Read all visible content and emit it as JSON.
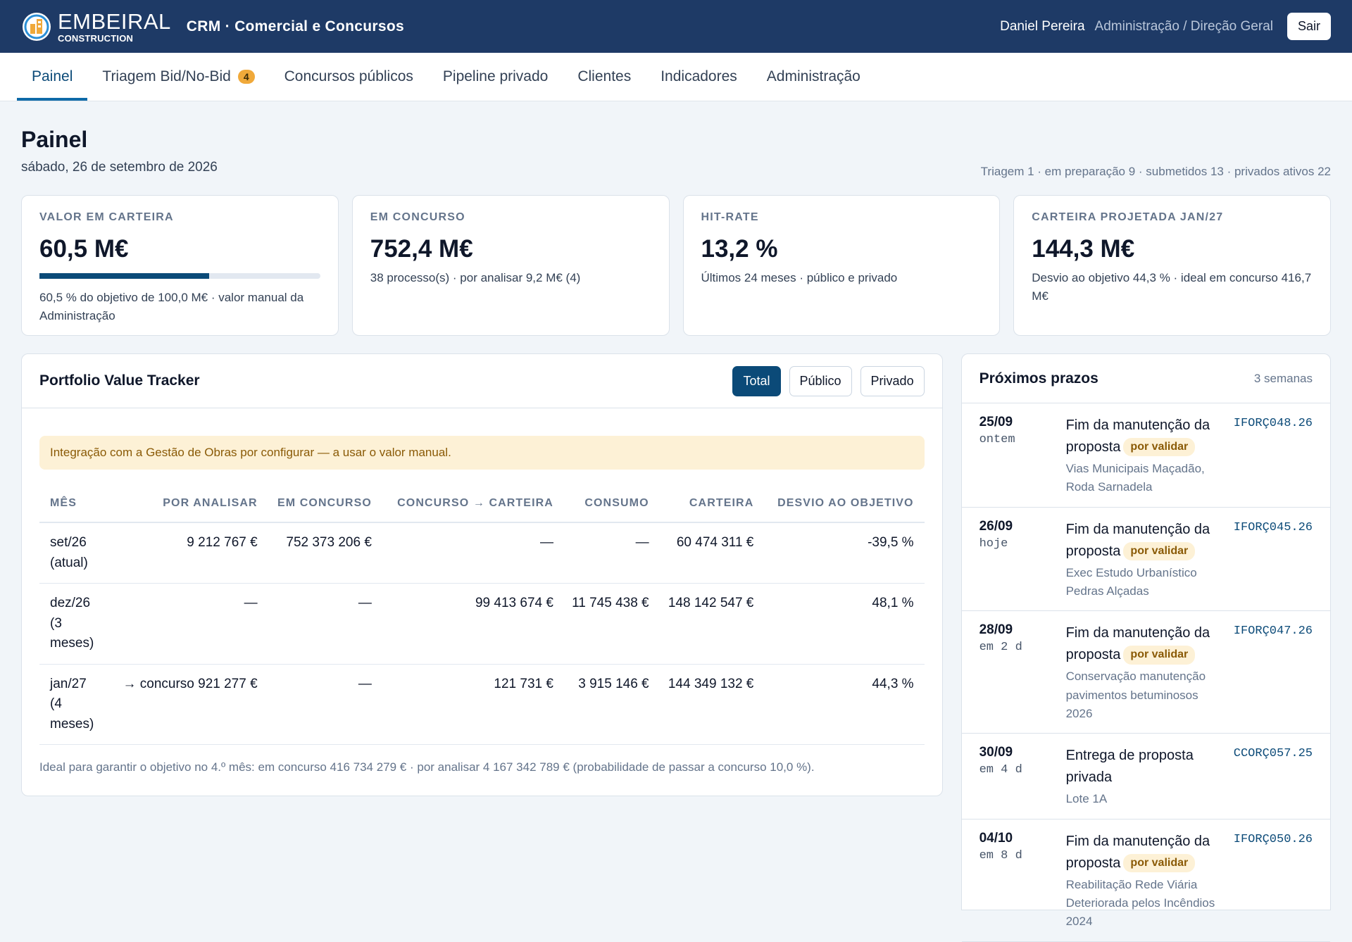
{
  "brand": {
    "name": "EMBEIRAL",
    "sub": "CONSTRUCTION",
    "app_title": "CRM · Comercial e Concursos",
    "colors": {
      "header_bg": "#1e3a66",
      "accent": "#0b4a78",
      "warning_bg": "#fdf1d6",
      "badge": "#f0a93a"
    }
  },
  "user": {
    "name": "Daniel Pereira",
    "role": "Administração / Direção Geral",
    "logout_label": "Sair"
  },
  "nav": {
    "tabs": [
      {
        "label": "Painel",
        "active": true
      },
      {
        "label": "Triagem Bid/No-Bid",
        "badge": "4"
      },
      {
        "label": "Concursos públicos"
      },
      {
        "label": "Pipeline privado"
      },
      {
        "label": "Clientes"
      },
      {
        "label": "Indicadores"
      },
      {
        "label": "Administração"
      }
    ]
  },
  "page": {
    "title": "Painel",
    "date": "sábado, 26 de setembro de 2026",
    "summary": "Triagem 1 · em preparação 9 · submetidos 13 · privados ativos 22"
  },
  "kpis": [
    {
      "label": "VALOR EM CARTEIRA",
      "value": "60,5 M€",
      "progress_fraction": 0.605,
      "note": "60,5 % do objetivo de 100,0 M€ · valor manual da Administração"
    },
    {
      "label": "EM CONCURSO",
      "value": "752,4 M€",
      "note": "38 processo(s) · por analisar 9,2 M€ (4)"
    },
    {
      "label": "HIT-RATE",
      "value": "13,2 %",
      "note": "Últimos 24 meses · público e privado"
    },
    {
      "label": "CARTEIRA PROJETADA JAN/27",
      "value": "144,3 M€",
      "note": "Desvio ao objetivo 44,3 % · ideal em concurso 416,7 M€"
    }
  ],
  "tracker": {
    "title": "Portfolio Value Tracker",
    "filters": [
      {
        "label": "Total",
        "active": true
      },
      {
        "label": "Público"
      },
      {
        "label": "Privado"
      }
    ],
    "warning": "Integração com a Gestão de Obras por configurar — a usar o valor manual.",
    "columns": [
      "MÊS",
      "POR ANALISAR",
      "EM CONCURSO",
      "CONCURSO → CARTEIRA",
      "CONSUMO",
      "CARTEIRA",
      "DESVIO AO OBJETIVO"
    ],
    "rows": [
      [
        "set/26 (atual)",
        "9 212 767 €",
        "752 373 206 €",
        "—",
        "—",
        "60 474 311 €",
        "-39,5 %"
      ],
      [
        "dez/26 (3 meses)",
        "—",
        "—",
        "99 413 674 €",
        "11 745 438 €",
        "148 142 547 €",
        "48,1 %"
      ],
      [
        "jan/27 (4 meses)",
        "→ concurso 921 277 €",
        "—",
        "121 731 €",
        "3 915 146 €",
        "144 349 132 €",
        "44,3 %"
      ]
    ],
    "footnote": "Ideal para garantir o objetivo no 4.º mês: em concurso 416 734 279 € · por analisar 4 167 342 789 € (probabilidade de passar a concurso 10,0 %)."
  },
  "deadlines": {
    "title": "Próximos prazos",
    "range": "3 semanas",
    "items": [
      {
        "date": "25/09",
        "relative": "ontem",
        "description": "Fim da manutenção da proposta",
        "status": "por validar",
        "client": "Vias Municipais Maçadão, Roda Sarnadela",
        "code": "IFORÇ048.26"
      },
      {
        "date": "26/09",
        "relative": "hoje",
        "description": "Fim da manutenção da proposta",
        "status": "por validar",
        "client": "Exec Estudo Urbanístico Pedras Alçadas",
        "code": "IFORÇ045.26"
      },
      {
        "date": "28/09",
        "relative": "em 2 d",
        "description": "Fim da manutenção da proposta",
        "status": "por validar",
        "client": "Conservação manutenção pavimentos betuminosos 2026",
        "code": "IFORÇ047.26"
      },
      {
        "date": "30/09",
        "relative": "em 4 d",
        "description": "Entrega de proposta privada",
        "status": "",
        "client": "Lote 1A",
        "code": "CCORÇ057.25"
      },
      {
        "date": "04/10",
        "relative": "em 8 d",
        "description": "Fim da manutenção da proposta",
        "status": "por validar",
        "client": "Reabilitação Rede Viária Deteriorada pelos Incêndios 2024",
        "code": "IFORÇ050.26"
      }
    ]
  }
}
